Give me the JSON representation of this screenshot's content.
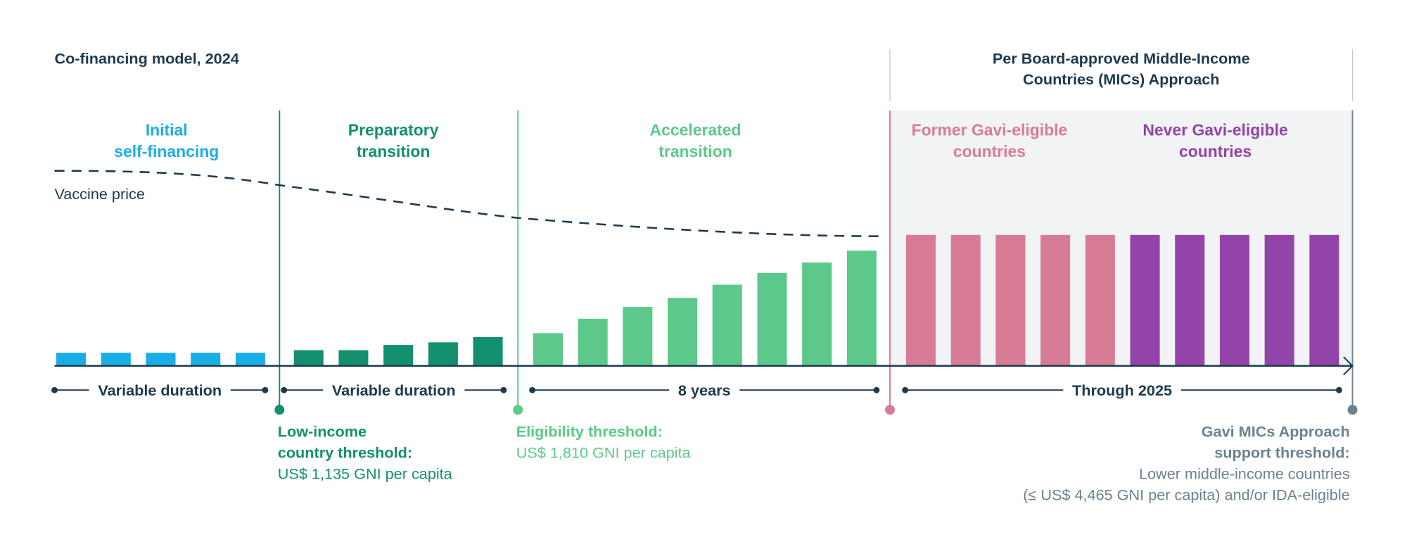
{
  "chart_data": {
    "type": "bar",
    "title": "Co-financing model, 2024",
    "right_header": [
      "Per Board-approved Middle-Income",
      "Countries (MICs) Approach"
    ],
    "price_label": "Vaccine price",
    "value_scale_note": "relative units, MICs bars = 100",
    "groups": [
      {
        "name": [
          "Initial",
          "self-financing"
        ],
        "color": "#1aaee6",
        "values": [
          10,
          10,
          10,
          10,
          10
        ],
        "duration": "Variable duration"
      },
      {
        "name": [
          "Preparatory",
          "transition"
        ],
        "color": "#12906e",
        "values": [
          12,
          12,
          16,
          18,
          22
        ],
        "duration": "Variable duration"
      },
      {
        "name": [
          "Accelerated",
          "transition"
        ],
        "color": "#5cc98a",
        "values": [
          25,
          36,
          45,
          52,
          62,
          71,
          79,
          88
        ],
        "duration": "8 years"
      },
      {
        "name": [
          "Former Gavi-eligible",
          "countries"
        ],
        "color": "#d87c96",
        "values": [
          100,
          100,
          100,
          100,
          100
        ],
        "duration": "Through 2025"
      },
      {
        "name": [
          "Never Gavi-eligible",
          "countries"
        ],
        "color": "#9344a8",
        "values": [
          100,
          100,
          100,
          100,
          100
        ],
        "duration": ""
      }
    ],
    "vaccine_price": [
      149,
      138,
      113,
      99
    ],
    "thresholds": [
      {
        "color": "#12906e",
        "bold": [
          "Low-income",
          "country threshold:"
        ],
        "text": [
          "US$ 1,135 GNI per capita"
        ]
      },
      {
        "color": "#5cc98a",
        "bold": [
          "Eligibility threshold:"
        ],
        "text": [
          "US$ 1,810 GNI per capita"
        ]
      },
      {
        "color": "#d87c96",
        "bold": [],
        "text": []
      },
      {
        "color": "#6b8290",
        "bold": [
          "Gavi MICs Approach",
          "support threshold:"
        ],
        "text": [
          "Lower middle-income countries",
          "(≤ US$ 4,465 GNI per capita) and/or IDA-eligible"
        ]
      }
    ],
    "colors": {
      "text": "#1c3a4f",
      "shade": "#f1f3f4"
    }
  }
}
